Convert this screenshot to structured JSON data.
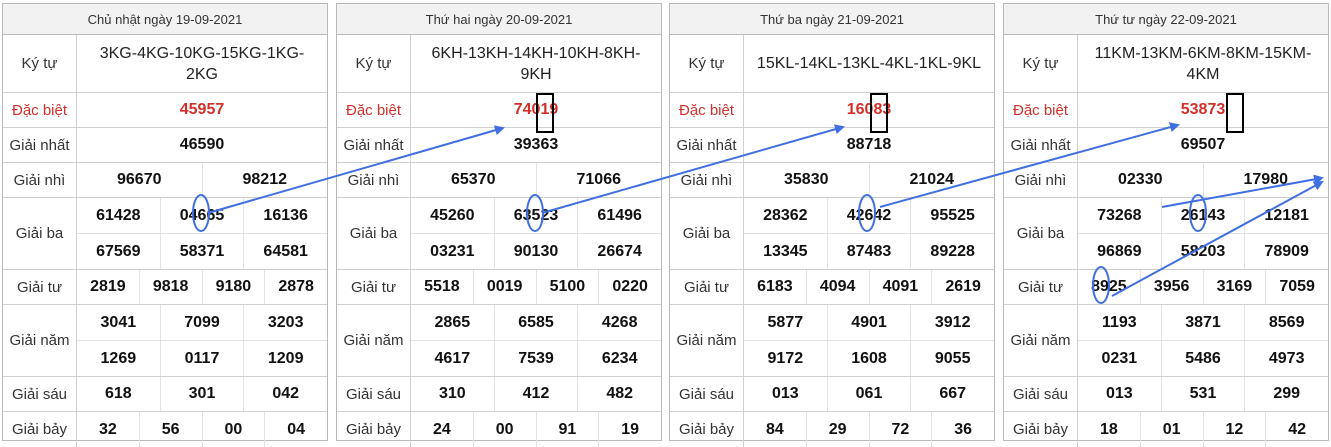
{
  "labels": {
    "ky_tu": "Ký tự",
    "dac_biet": "Đặc biệt",
    "giai_nhat": "Giải nhất",
    "giai_nhi": "Giải nhì",
    "giai_ba": "Giải ba",
    "giai_tu": "Giải tư",
    "giai_nam": "Giải năm",
    "giai_sau": "Giải sáu",
    "giai_bay": "Giải bảy"
  },
  "colors": {
    "special": "#d1302b",
    "annotation": "#3f6fe0",
    "frame": "#000000"
  },
  "boards": [
    {
      "date": "Chủ nhật ngày 19-09-2021",
      "ky_tu": "3KG-4KG-10KG-15KG-1KG-2KG",
      "dac_biet": [
        "45957"
      ],
      "giai_nhat": [
        "46590"
      ],
      "giai_nhi": [
        "96670",
        "98212"
      ],
      "giai_ba": [
        "61428",
        "04665",
        "16136",
        "67569",
        "58371",
        "64581"
      ],
      "giai_tu": [
        "2819",
        "9818",
        "9180",
        "2878"
      ],
      "giai_nam": [
        "3041",
        "7099",
        "3203",
        "1269",
        "0117",
        "1209"
      ],
      "giai_sau": [
        "618",
        "301",
        "042"
      ],
      "giai_bay": [
        "32",
        "56",
        "00",
        "04"
      ]
    },
    {
      "date": "Thứ hai ngày 20-09-2021",
      "ky_tu": "6KH-13KH-14KH-10KH-8KH-9KH",
      "dac_biet": [
        "74019"
      ],
      "giai_nhat": [
        "39363"
      ],
      "giai_nhi": [
        "65370",
        "71066"
      ],
      "giai_ba": [
        "45260",
        "63523",
        "61496",
        "03231",
        "90130",
        "26674"
      ],
      "giai_tu": [
        "5518",
        "0019",
        "5100",
        "0220"
      ],
      "giai_nam": [
        "2865",
        "6585",
        "4268",
        "4617",
        "7539",
        "6234"
      ],
      "giai_sau": [
        "310",
        "412",
        "482"
      ],
      "giai_bay": [
        "24",
        "00",
        "91",
        "19"
      ]
    },
    {
      "date": "Thứ ba ngày 21-09-2021",
      "ky_tu": "15KL-14KL-13KL-4KL-1KL-9KL",
      "dac_biet": [
        "16083"
      ],
      "giai_nhat": [
        "88718"
      ],
      "giai_nhi": [
        "35830",
        "21024"
      ],
      "giai_ba": [
        "28362",
        "42642",
        "95525",
        "13345",
        "87483",
        "89228"
      ],
      "giai_tu": [
        "6183",
        "4094",
        "4091",
        "2619"
      ],
      "giai_nam": [
        "5877",
        "4901",
        "3912",
        "9172",
        "1608",
        "9055"
      ],
      "giai_sau": [
        "013",
        "061",
        "667"
      ],
      "giai_bay": [
        "84",
        "29",
        "72",
        "36"
      ]
    },
    {
      "date": "Thứ tư ngày 22-09-2021",
      "ky_tu": "11KM-13KM-6KM-8KM-15KM-4KM",
      "dac_biet": [
        "53873"
      ],
      "giai_nhat": [
        "69507"
      ],
      "giai_nhi": [
        "02330",
        "17980"
      ],
      "giai_ba": [
        "73268",
        "26143",
        "12181",
        "96869",
        "58203",
        "78909"
      ],
      "giai_tu": [
        "8925",
        "3956",
        "3169",
        "7059"
      ],
      "giai_nam": [
        "1193",
        "3871",
        "8569",
        "0231",
        "5486",
        "4973"
      ],
      "giai_sau": [
        "013",
        "531",
        "299"
      ],
      "giai_bay": [
        "18",
        "01",
        "12",
        "42"
      ]
    }
  ]
}
